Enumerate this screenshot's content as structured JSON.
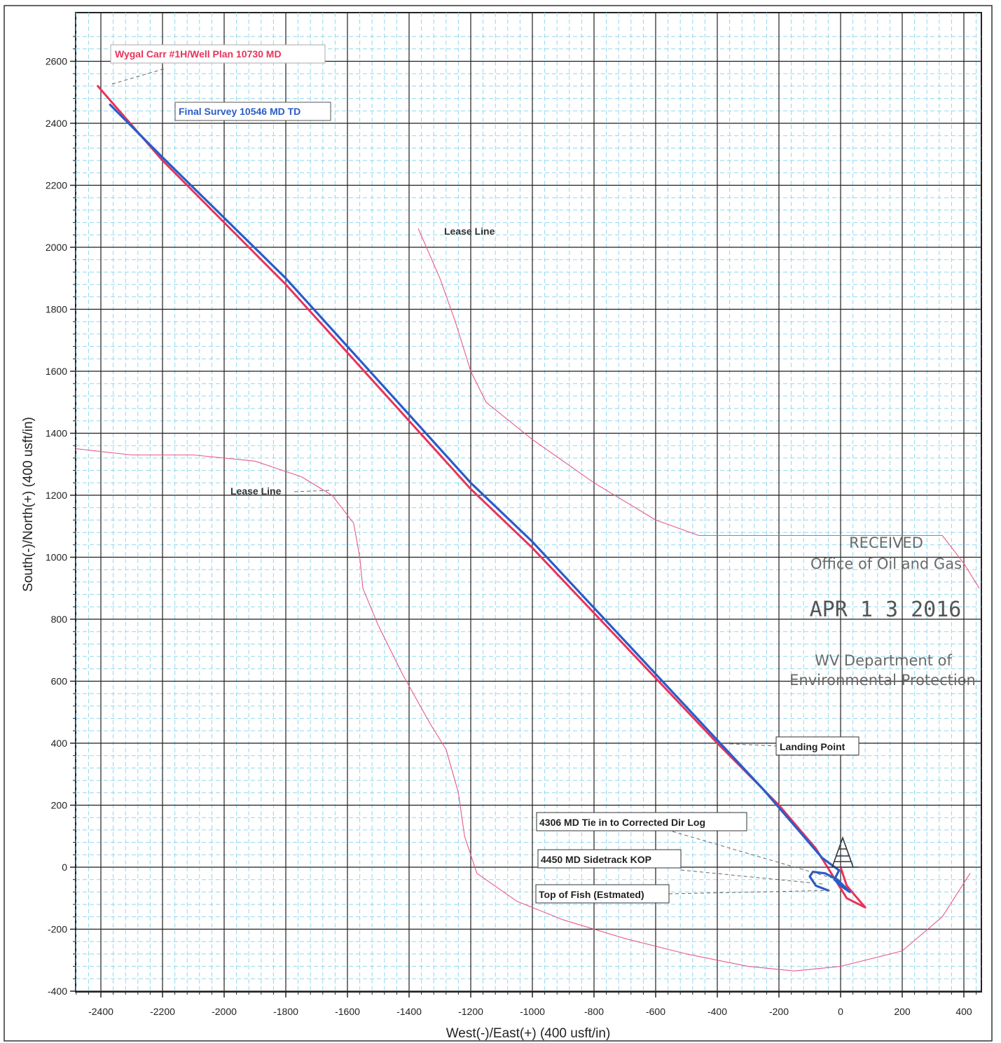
{
  "chart_data": {
    "type": "line",
    "xlabel": "West(-)/East(+) (400 usft/in)",
    "ylabel": "South(-)/North(+) (400 usft/in)",
    "xlim": [
      -2480,
      460
    ],
    "ylim": [
      -400,
      2700
    ],
    "grid": true,
    "x_ticks": [
      -2400,
      -2200,
      -2000,
      -1800,
      -1600,
      -1400,
      -1200,
      -1000,
      -800,
      -600,
      -400,
      -200,
      0,
      200,
      400
    ],
    "y_ticks": [
      -400,
      -200,
      0,
      200,
      400,
      600,
      800,
      1000,
      1200,
      1400,
      1600,
      1800,
      2000,
      2200,
      2400,
      2600
    ],
    "series": [
      {
        "name": "Wygal Carr #1H/Well Plan 10730 MD",
        "color": "#e8335a",
        "points": [
          [
            0,
            0
          ],
          [
            20,
            -60
          ],
          [
            80,
            -130
          ],
          [
            20,
            -100
          ],
          [
            -80,
            60
          ],
          [
            -200,
            200
          ],
          [
            -400,
            400
          ],
          [
            -1000,
            1030
          ],
          [
            -1200,
            1220
          ],
          [
            -1800,
            1880
          ],
          [
            -2200,
            2280
          ],
          [
            -2410,
            2520
          ]
        ]
      },
      {
        "name": "Final Survey 10546 MD TD",
        "color": "#2a5cc8",
        "points": [
          [
            -40,
            -75
          ],
          [
            -80,
            -60
          ],
          [
            -100,
            -30
          ],
          [
            -90,
            -15
          ],
          [
            -50,
            -20
          ],
          [
            -10,
            -40
          ],
          [
            30,
            -80
          ],
          [
            0,
            -60
          ],
          [
            -20,
            -40
          ],
          [
            -5,
            -10
          ],
          [
            -60,
            30
          ],
          [
            -120,
            100
          ],
          [
            -250,
            250
          ],
          [
            -400,
            410
          ],
          [
            -1000,
            1050
          ],
          [
            -1200,
            1240
          ],
          [
            -1800,
            1900
          ],
          [
            -2200,
            2290
          ],
          [
            -2370,
            2460
          ]
        ]
      },
      {
        "name": "Lease Line",
        "color": "#e85a88",
        "points": [
          [
            -1370,
            2060
          ],
          [
            -1300,
            1900
          ],
          [
            -1250,
            1760
          ],
          [
            -1200,
            1600
          ],
          [
            -1150,
            1500
          ],
          [
            -1000,
            1380
          ],
          [
            -800,
            1240
          ],
          [
            -600,
            1120
          ],
          [
            -460,
            1070
          ],
          [
            -300,
            1070
          ],
          [
            -100,
            1070
          ],
          [
            100,
            1070
          ],
          [
            330,
            1070
          ],
          [
            400,
            980
          ],
          [
            450,
            900
          ]
        ]
      },
      {
        "name": "Lease Line",
        "color": "#e85a88",
        "points": [
          [
            -2480,
            1350
          ],
          [
            -2300,
            1330
          ],
          [
            -2100,
            1330
          ],
          [
            -1900,
            1310
          ],
          [
            -1750,
            1260
          ],
          [
            -1650,
            1200
          ],
          [
            -1580,
            1110
          ],
          [
            -1560,
            1000
          ],
          [
            -1550,
            900
          ],
          [
            -1500,
            780
          ],
          [
            -1420,
            620
          ],
          [
            -1330,
            460
          ],
          [
            -1280,
            380
          ],
          [
            -1240,
            240
          ],
          [
            -1220,
            100
          ],
          [
            -1180,
            -20
          ],
          [
            -1050,
            -110
          ],
          [
            -900,
            -170
          ],
          [
            -700,
            -230
          ],
          [
            -500,
            -280
          ],
          [
            -300,
            -320
          ],
          [
            -150,
            -335
          ],
          [
            0,
            -320
          ],
          [
            200,
            -270
          ],
          [
            330,
            -160
          ],
          [
            420,
            -20
          ]
        ]
      }
    ],
    "annotations": {
      "plan_label": "Wygal Carr #1H/Well Plan 10730 MD",
      "survey_label": "Final Survey 10546 MD TD",
      "lease_line_upper": "Lease Line",
      "lease_line_lower": "Lease Line",
      "landing_point": "Landing Point",
      "tie_in": "4306 MD Tie in to Corrected Dir Log",
      "sidetrack": "4450 MD Sidetrack KOP",
      "top_of_fish": "Top of Fish (Estmated)"
    },
    "stamp": {
      "line1": "RECEIVED",
      "line2": "Office of Oil and Gas",
      "date": "APR 1 3 2016",
      "line3": "WV Department of",
      "line4": "Environmental Protection"
    }
  }
}
